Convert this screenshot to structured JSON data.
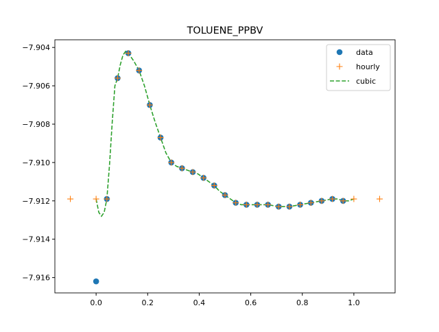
{
  "chart_data": {
    "type": "scatter",
    "title": "TOLUENE_PPBV",
    "xlabel": "",
    "ylabel": "",
    "xlim": [
      -0.16,
      1.16
    ],
    "ylim": [
      -7.9168,
      -7.9036
    ],
    "xticks": [
      0.0,
      0.2,
      0.4,
      0.6,
      0.8,
      1.0
    ],
    "xtick_labels": [
      "0.0",
      "0.2",
      "0.4",
      "0.6",
      "0.8",
      "1.0"
    ],
    "yticks": [
      -7.904,
      -7.906,
      -7.908,
      -7.91,
      -7.912,
      -7.914,
      -7.916
    ],
    "ytick_labels": [
      "−7.904",
      "−7.906",
      "−7.908",
      "−7.910",
      "−7.912",
      "−7.914",
      "−7.916"
    ],
    "legend_position": "top-right",
    "colors": {
      "data": "#1f77b4",
      "hourly": "#ff7f0e",
      "cubic": "#2ca02c"
    },
    "series": [
      {
        "name": "data",
        "style": "markers-circle",
        "x": [
          0.0,
          0.0417,
          0.0833,
          0.125,
          0.1667,
          0.2083,
          0.25,
          0.2917,
          0.3333,
          0.375,
          0.4167,
          0.4583,
          0.5,
          0.5417,
          0.5833,
          0.625,
          0.6667,
          0.7083,
          0.75,
          0.7917,
          0.8333,
          0.875,
          0.9167,
          0.9583
        ],
        "y": [
          -7.9162,
          -7.9119,
          -7.9056,
          -7.9043,
          -7.9052,
          -7.907,
          -7.9087,
          -7.91,
          -7.9103,
          -7.9105,
          -7.9108,
          -7.9112,
          -7.9117,
          -7.9121,
          -7.9122,
          -7.9122,
          -7.9122,
          -7.9123,
          -7.9123,
          -7.9122,
          -7.9121,
          -7.912,
          -7.9119,
          -7.912
        ]
      },
      {
        "name": "hourly",
        "style": "markers-plus",
        "x": [
          -0.1,
          0.0,
          0.0417,
          0.0833,
          0.125,
          0.1667,
          0.2083,
          0.25,
          0.2917,
          0.3333,
          0.375,
          0.4167,
          0.4583,
          0.5,
          0.5417,
          0.5833,
          0.625,
          0.6667,
          0.7083,
          0.75,
          0.7917,
          0.8333,
          0.875,
          0.9167,
          0.9583,
          1.0,
          1.1
        ],
        "y": [
          -7.9119,
          -7.9119,
          -7.9119,
          -7.9056,
          -7.9043,
          -7.9052,
          -7.907,
          -7.9087,
          -7.91,
          -7.9103,
          -7.9105,
          -7.9108,
          -7.9112,
          -7.9117,
          -7.9121,
          -7.9122,
          -7.9122,
          -7.9122,
          -7.9123,
          -7.9123,
          -7.9122,
          -7.9121,
          -7.912,
          -7.9119,
          -7.912,
          -7.9119,
          -7.9119
        ]
      },
      {
        "name": "cubic",
        "style": "dashed-line",
        "x": [
          0.0,
          0.0104,
          0.0208,
          0.0313,
          0.0417,
          0.0521,
          0.0625,
          0.0729,
          0.0833,
          0.0938,
          0.1042,
          0.1146,
          0.125,
          0.1458,
          0.1667,
          0.1875,
          0.2083,
          0.2292,
          0.25,
          0.2708,
          0.2917,
          0.3125,
          0.3333,
          0.3542,
          0.375,
          0.3958,
          0.4167,
          0.4375,
          0.4583,
          0.4792,
          0.5,
          0.5208,
          0.5417,
          0.5625,
          0.5833,
          0.625,
          0.6667,
          0.7083,
          0.75,
          0.7917,
          0.8333,
          0.875,
          0.9167,
          0.9375,
          0.9583,
          0.9792,
          1.0
        ],
        "y": [
          -7.9119,
          -7.9126,
          -7.9128,
          -7.9126,
          -7.9119,
          -7.9101,
          -7.9079,
          -7.906,
          -7.9056,
          -7.9049,
          -7.9044,
          -7.9042,
          -7.9043,
          -7.9047,
          -7.9052,
          -7.906,
          -7.907,
          -7.9079,
          -7.9087,
          -7.9095,
          -7.91,
          -7.9102,
          -7.9103,
          -7.9104,
          -7.9105,
          -7.9106,
          -7.9108,
          -7.911,
          -7.9112,
          -7.9115,
          -7.9117,
          -7.9119,
          -7.9121,
          -7.9122,
          -7.9122,
          -7.9122,
          -7.9122,
          -7.9123,
          -7.9123,
          -7.9122,
          -7.9121,
          -7.912,
          -7.9119,
          -7.9119,
          -7.912,
          -7.912,
          -7.9119
        ]
      }
    ]
  }
}
